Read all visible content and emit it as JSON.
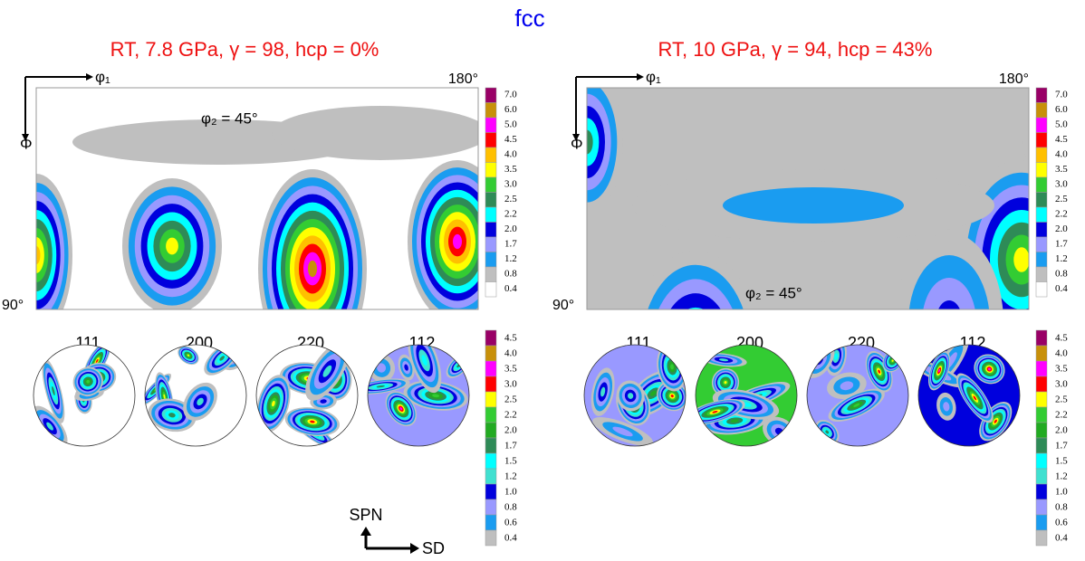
{
  "title": "fcc",
  "panels": [
    {
      "title": "RT, 7.8 GPa, γ = 98, hcp = 0%",
      "odf": {
        "phi1": "φ₁",
        "Phi": "Φ",
        "phi2": "φ₂ = 45°",
        "end": "180°",
        "start": "90°"
      },
      "pole_figures": [
        "111",
        "200",
        "220",
        "112"
      ]
    },
    {
      "title": "RT, 10 GPa, γ = 94, hcp = 43%",
      "odf": {
        "phi1": "φ₁",
        "Phi": "Φ",
        "phi2": "φ₂ = 45°",
        "end": "180°",
        "start": "90°"
      },
      "pole_figures": [
        "111",
        "200",
        "220",
        "112"
      ]
    }
  ],
  "odf_legend": [
    {
      "label": "7.0",
      "color": "#990066"
    },
    {
      "label": "6.0",
      "color": "#c8900a"
    },
    {
      "label": "5.0",
      "color": "#ff00ff"
    },
    {
      "label": "4.5",
      "color": "#ff0000"
    },
    {
      "label": "4.0",
      "color": "#ffc000"
    },
    {
      "label": "3.5",
      "color": "#ffff00"
    },
    {
      "label": "3.0",
      "color": "#33cc33"
    },
    {
      "label": "2.5",
      "color": "#2e8b57"
    },
    {
      "label": "2.2",
      "color": "#00ffff"
    },
    {
      "label": "2.0",
      "color": "#0000dd"
    },
    {
      "label": "1.7",
      "color": "#9999ff"
    },
    {
      "label": "1.2",
      "color": "#1a9cf0"
    },
    {
      "label": "0.8",
      "color": "#bfbfbf"
    },
    {
      "label": "0.4",
      "color": "#ffffff"
    }
  ],
  "pf_legend": [
    {
      "label": "4.5",
      "color": "#990066"
    },
    {
      "label": "4.0",
      "color": "#c8900a"
    },
    {
      "label": "3.5",
      "color": "#ff00ff"
    },
    {
      "label": "3.0",
      "color": "#ff0000"
    },
    {
      "label": "2.5",
      "color": "#ffff00"
    },
    {
      "label": "2.2",
      "color": "#33cc33"
    },
    {
      "label": "2.0",
      "color": "#22aa22"
    },
    {
      "label": "1.7",
      "color": "#2e8b57"
    },
    {
      "label": "1.5",
      "color": "#00ffff"
    },
    {
      "label": "1.2",
      "color": "#40e0d0"
    },
    {
      "label": "1.0",
      "color": "#0000dd"
    },
    {
      "label": "0.8",
      "color": "#9999ff"
    },
    {
      "label": "0.6",
      "color": "#1a9cf0"
    },
    {
      "label": "0.4",
      "color": "#bfbfbf"
    }
  ],
  "axes": {
    "spn": "SPN",
    "sd": "SD"
  }
}
